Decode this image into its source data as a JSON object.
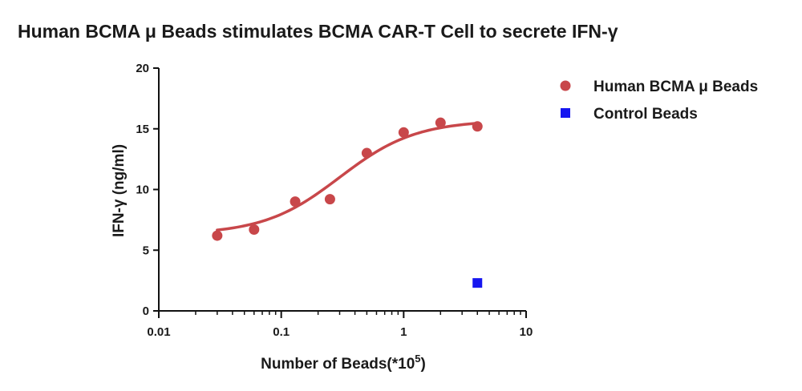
{
  "chart_data": {
    "type": "scatter",
    "title": "Human BCMA μ Beads stimulates BCMA CAR-T Cell to secrete IFN-γ",
    "xlabel": "Number of Beads(*10",
    "xlabel_sup": "5",
    "xlabel_suffix": ")",
    "ylabel": "IFN-γ  (ng/ml)",
    "xscale": "log",
    "xlim": [
      0.01,
      10
    ],
    "ylim": [
      0,
      20
    ],
    "xticks": [
      0.01,
      0.1,
      1,
      10
    ],
    "xtick_labels": [
      "0.01",
      "0.1",
      "1",
      "10"
    ],
    "yticks": [
      0,
      5,
      10,
      15,
      20
    ],
    "ytick_labels": [
      "0",
      "5",
      "10",
      "15",
      "20"
    ],
    "grid": false,
    "legend_position": "top-right",
    "series": [
      {
        "name": "Human BCMA μ Beads",
        "marker": "circle",
        "color": "#c8474a",
        "fit_curve": true,
        "points": [
          {
            "x": 0.03,
            "y": 6.2
          },
          {
            "x": 0.06,
            "y": 6.7
          },
          {
            "x": 0.13,
            "y": 9.0
          },
          {
            "x": 0.25,
            "y": 9.2
          },
          {
            "x": 0.5,
            "y": 13.0
          },
          {
            "x": 1,
            "y": 14.7
          },
          {
            "x": 2,
            "y": 15.5
          },
          {
            "x": 4,
            "y": 15.2
          }
        ]
      },
      {
        "name": "Control Beads",
        "marker": "square",
        "color": "#1616f0",
        "fit_curve": false,
        "points": [
          {
            "x": 4,
            "y": 2.3
          }
        ]
      }
    ]
  }
}
